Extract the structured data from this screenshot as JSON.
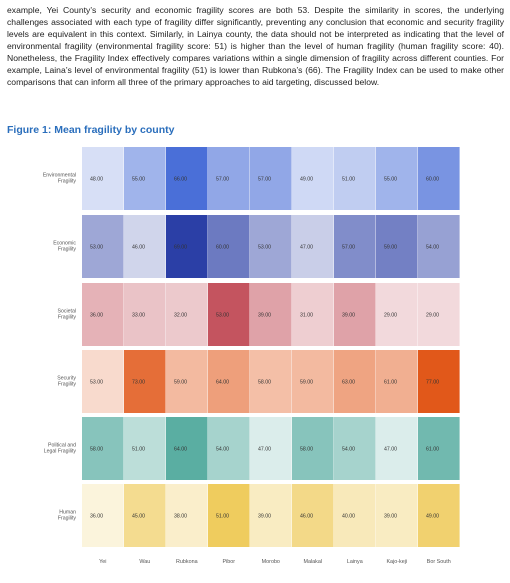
{
  "document": {
    "paragraph": "example, Yei County’s security and economic fragility scores are both 53. Despite the similarity in scores, the underlying challenges associated with each type of fragility differ significantly, preventing any conclusion that economic and security fragility levels are equivalent in this context. Similarly, in Lainya county, the data should not be interpreted as indicating that the level of environmental fragility (environmental fragility score: 51) is higher than the level of human fragility (human fragility score: 40). Nonetheless, the Fragility Index effectively compares variations within a single dimension of fragility across different counties. For example, Laina’s level of environmental fragility (51) is lower than Rubkona’s (66). The Fragility Index can be used to make other comparisons that can inform all three of the primary approaches to aid targeting, discussed below.",
    "figure_title": "Figure 1: Mean fragility by county"
  },
  "chart_data": {
    "type": "heatmap",
    "title": "",
    "xlabel": "",
    "ylabel": "",
    "columns": [
      "Yei",
      "Wau",
      "Rubkona",
      "Pibor",
      "Morobo",
      "Malakal",
      "Lainya",
      "Kajo-keji",
      "Bor South"
    ],
    "rows": [
      {
        "label": [
          "Environmental",
          "Fragility"
        ],
        "color": "#4a6fd8",
        "values": [
          "48.00",
          "55.00",
          "66.00",
          "57.00",
          "57.00",
          "49.00",
          "51.00",
          "55.00",
          "60.00"
        ]
      },
      {
        "label": [
          "Economic",
          "Fragility"
        ],
        "color": "#2b3fa6",
        "values": [
          "53.00",
          "46.00",
          "69.00",
          "60.00",
          "53.00",
          "47.00",
          "57.00",
          "59.00",
          "54.00"
        ]
      },
      {
        "label": [
          "Societal",
          "Fragility"
        ],
        "color": "#c4545f",
        "values": [
          "36.00",
          "33.00",
          "32.00",
          "53.00",
          "39.00",
          "31.00",
          "39.00",
          "29.00",
          "29.00"
        ]
      },
      {
        "label": [
          "Security",
          "Fragility"
        ],
        "color": "#e1581a",
        "values": [
          "53.00",
          "73.00",
          "59.00",
          "64.00",
          "58.00",
          "59.00",
          "63.00",
          "61.00",
          "77.00"
        ]
      },
      {
        "label": [
          "Political and",
          "Legal Fragility"
        ],
        "color": "#5aaea2",
        "values": [
          "58.00",
          "51.00",
          "64.00",
          "54.00",
          "47.00",
          "58.00",
          "54.00",
          "47.00",
          "61.00"
        ]
      },
      {
        "label": [
          "Human",
          "Fragility"
        ],
        "color": "#efcc5e",
        "values": [
          "36.00",
          "45.00",
          "38.00",
          "51.00",
          "39.00",
          "46.00",
          "40.00",
          "39.00",
          "49.00"
        ]
      }
    ]
  }
}
